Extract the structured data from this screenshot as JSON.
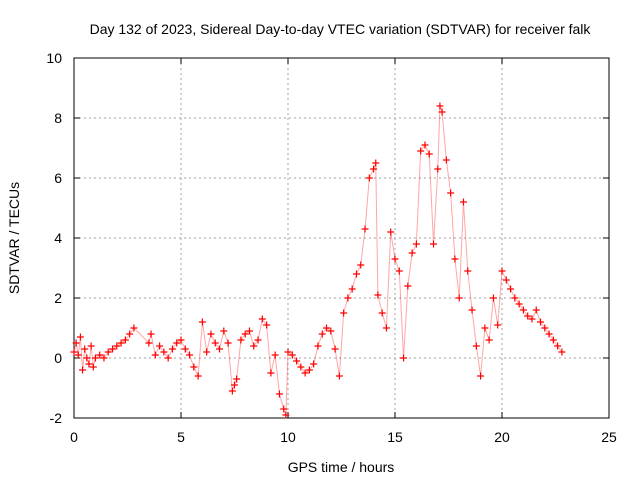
{
  "chart_data": {
    "type": "scatter",
    "title": "Day 132 of 2023, Sidereal Day-to-day VTEC variation (SDTVAR) for receiver falk",
    "xlabel": "GPS time / hours",
    "ylabel": "SDTVAR / TECUs",
    "xlim": [
      0,
      25
    ],
    "ylim": [
      -2,
      10
    ],
    "x_ticks": [
      0,
      5,
      10,
      15,
      20,
      25
    ],
    "y_ticks": [
      -2,
      0,
      2,
      4,
      6,
      8,
      10
    ],
    "x_tick_labels": [
      "0",
      "5",
      "10",
      "15",
      "20",
      "25"
    ],
    "y_tick_labels": [
      "-2",
      "0",
      "2",
      "4",
      "6",
      "8",
      "10"
    ],
    "grid": true,
    "marker": "plus",
    "series": [
      {
        "name": "SDTVAR",
        "color": "#ff0000",
        "x": [
          0.0,
          0.1,
          0.2,
          0.3,
          0.4,
          0.5,
          0.6,
          0.7,
          0.8,
          0.9,
          1.0,
          1.2,
          1.4,
          1.6,
          1.8,
          2.0,
          2.2,
          2.4,
          2.6,
          2.8,
          3.5,
          3.6,
          3.8,
          4.0,
          4.2,
          4.4,
          4.6,
          4.8,
          5.0,
          5.2,
          5.4,
          5.6,
          5.8,
          6.0,
          6.2,
          6.4,
          6.6,
          6.8,
          7.0,
          7.2,
          7.4,
          7.5,
          7.6,
          7.8,
          8.0,
          8.2,
          8.4,
          8.6,
          8.8,
          9.0,
          9.2,
          9.4,
          9.6,
          9.8,
          9.9,
          10.0,
          10.2,
          10.4,
          10.6,
          10.8,
          11.0,
          11.2,
          11.4,
          11.6,
          11.8,
          12.0,
          12.2,
          12.4,
          12.6,
          12.8,
          13.0,
          13.2,
          13.4,
          13.6,
          13.8,
          14.0,
          14.1,
          14.2,
          14.4,
          14.6,
          14.8,
          15.0,
          15.2,
          15.4,
          15.6,
          15.8,
          16.0,
          16.2,
          16.4,
          16.6,
          16.8,
          17.0,
          17.1,
          17.2,
          17.4,
          17.6,
          17.8,
          18.0,
          18.2,
          18.4,
          18.6,
          18.8,
          19.0,
          19.2,
          19.4,
          19.6,
          19.8,
          20.0,
          20.2,
          20.4,
          20.6,
          20.8,
          21.0,
          21.2,
          21.4,
          21.6,
          21.8,
          22.0,
          22.2,
          22.4,
          22.6,
          22.8
        ],
        "y": [
          0.2,
          0.5,
          0.1,
          0.7,
          -0.4,
          0.3,
          0.0,
          -0.2,
          0.4,
          -0.3,
          0.0,
          0.1,
          0.0,
          0.2,
          0.3,
          0.4,
          0.5,
          0.6,
          0.8,
          1.0,
          0.5,
          0.8,
          0.1,
          0.4,
          0.2,
          0.0,
          0.3,
          0.5,
          0.6,
          0.3,
          0.1,
          -0.3,
          -0.6,
          1.2,
          0.2,
          0.8,
          0.5,
          0.3,
          0.9,
          0.5,
          -1.1,
          -0.9,
          -0.7,
          0.6,
          0.8,
          0.9,
          0.4,
          0.6,
          1.3,
          1.1,
          -0.5,
          0.1,
          -1.2,
          -1.7,
          -1.9,
          0.2,
          0.1,
          -0.1,
          -0.3,
          -0.5,
          -0.4,
          -0.2,
          0.4,
          0.8,
          1.0,
          0.9,
          0.3,
          -0.6,
          1.5,
          2.0,
          2.3,
          2.8,
          3.1,
          4.3,
          6.0,
          6.3,
          6.5,
          2.1,
          1.5,
          1.0,
          4.2,
          3.3,
          2.9,
          0.0,
          2.4,
          3.5,
          3.8,
          6.9,
          7.1,
          6.8,
          3.8,
          6.3,
          8.4,
          8.2,
          6.6,
          5.5,
          3.3,
          2.0,
          5.2,
          2.9,
          1.6,
          0.4,
          -0.6,
          1.0,
          0.6,
          2.0,
          1.1,
          2.9,
          2.6,
          2.3,
          2.0,
          1.8,
          1.6,
          1.4,
          1.3,
          1.6,
          1.2,
          1.0,
          0.8,
          0.6,
          0.4,
          0.2
        ]
      }
    ]
  }
}
